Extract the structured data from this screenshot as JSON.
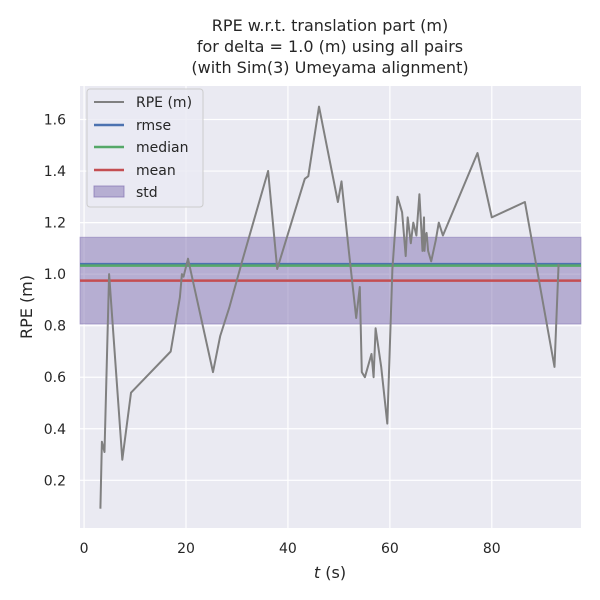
{
  "chart_data": {
    "type": "line",
    "title_lines": [
      "RPE w.r.t. translation part (m)",
      "for delta = 1.0 (m) using all pairs",
      "(with Sim(3) Umeyama alignment)"
    ],
    "xlabel_var": "t",
    "xlabel_unit": " (s)",
    "ylabel": "RPE (m)",
    "xlim": [
      -0.8,
      97.5
    ],
    "ylim": [
      0.015,
      1.73
    ],
    "x_ticks": [
      0,
      20,
      40,
      60,
      80
    ],
    "y_ticks": [
      0.2,
      0.4,
      0.6,
      0.8,
      1.0,
      1.2,
      1.4,
      1.6
    ],
    "y_tick_labels": [
      "0.2",
      "0.4",
      "0.6",
      "0.8",
      "1.0",
      "1.2",
      "1.4",
      "1.6"
    ],
    "grid": true,
    "legend_position": "top-left",
    "legend": [
      "RPE (m)",
      "rmse",
      "median",
      "mean",
      "std"
    ],
    "colors": {
      "rpe": "#808080",
      "rmse": "#4c72b0",
      "median": "#55a868",
      "mean": "#c44e52",
      "std": "#8172b2",
      "background": "#eaeaf2",
      "grid": "#ffffff"
    },
    "stats": {
      "rmse": 1.039,
      "median": 1.033,
      "mean": 0.975,
      "std_low": 0.807,
      "std_high": 1.143
    },
    "series": [
      {
        "name": "RPE (m)",
        "x": [
          3.2,
          3.5,
          4.0,
          4.9,
          7.5,
          9.2,
          17.0,
          18.8,
          19.2,
          19.5,
          20.4,
          25.3,
          26.7,
          28.5,
          31.0,
          36.1,
          37.9,
          43.3,
          44.0,
          46.1,
          49.8,
          50.5,
          52.0,
          53.4,
          54.1,
          54.5,
          55.1,
          56.4,
          56.8,
          57.2,
          58.3,
          59.5,
          60.5,
          61.5,
          62.4,
          63.1,
          63.5,
          64.1,
          64.6,
          65.2,
          65.8,
          66.4,
          66.7,
          66.8,
          67.0,
          67.2,
          67.5,
          68.1,
          69.0,
          69.6,
          70.4,
          77.2,
          80.0,
          86.5,
          92.3,
          93.1
        ],
        "y": [
          0.09,
          0.35,
          0.31,
          1.0,
          0.28,
          0.54,
          0.7,
          0.91,
          1.0,
          0.99,
          1.06,
          0.62,
          0.76,
          0.87,
          1.05,
          1.4,
          1.02,
          1.37,
          1.38,
          1.65,
          1.28,
          1.36,
          1.08,
          0.83,
          0.95,
          0.62,
          0.6,
          0.69,
          0.6,
          0.79,
          0.64,
          0.42,
          1.02,
          1.3,
          1.24,
          1.07,
          1.22,
          1.12,
          1.2,
          1.15,
          1.31,
          1.09,
          1.22,
          1.09,
          1.15,
          1.16,
          1.09,
          1.05,
          1.13,
          1.2,
          1.15,
          1.47,
          1.22,
          1.28,
          0.64,
          1.04
        ]
      }
    ]
  }
}
